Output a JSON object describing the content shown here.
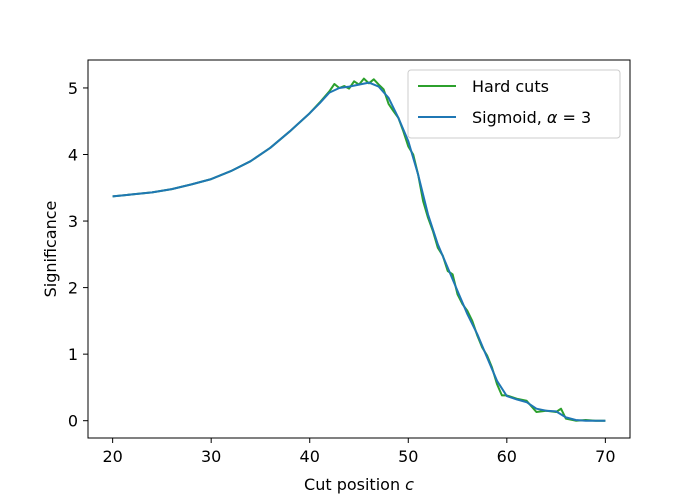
{
  "chart_data": {
    "type": "line",
    "xlabel_text": "Cut position",
    "xlabel_var": "c",
    "ylabel": "Significance",
    "xlim": [
      17.5,
      72.5
    ],
    "ylim": [
      -0.26,
      5.42
    ],
    "x_ticks": [
      20,
      30,
      40,
      50,
      60,
      70
    ],
    "y_ticks": [
      0,
      1,
      2,
      3,
      4,
      5
    ],
    "grid": false,
    "legend_position": "top-right",
    "series": [
      {
        "name": "Hard cuts",
        "color": "#2ca02c",
        "x": [
          20,
          22,
          24,
          26,
          28,
          30,
          32,
          34,
          36,
          38,
          40,
          41,
          42,
          42.5,
          43,
          43.5,
          44,
          44.5,
          45,
          45.5,
          46,
          46.5,
          47,
          47.5,
          48,
          48.5,
          49,
          49.5,
          50,
          50.5,
          51,
          51.5,
          52,
          52.5,
          53,
          53.5,
          54,
          54.5,
          55,
          55.5,
          56,
          56.5,
          57,
          57.5,
          58,
          58.5,
          59,
          59.5,
          60,
          61,
          62,
          63,
          64,
          65,
          65.5,
          66,
          67,
          68,
          69,
          70
        ],
        "y": [
          3.37,
          3.4,
          3.43,
          3.48,
          3.55,
          3.63,
          3.75,
          3.9,
          4.1,
          4.35,
          4.62,
          4.78,
          4.95,
          5.06,
          5.0,
          5.03,
          4.99,
          5.1,
          5.05,
          5.14,
          5.07,
          5.13,
          5.05,
          4.98,
          4.76,
          4.65,
          4.55,
          4.35,
          4.12,
          4.0,
          3.7,
          3.3,
          3.05,
          2.85,
          2.6,
          2.48,
          2.25,
          2.2,
          1.9,
          1.75,
          1.65,
          1.5,
          1.28,
          1.1,
          0.98,
          0.8,
          0.55,
          0.38,
          0.38,
          0.33,
          0.3,
          0.13,
          0.15,
          0.13,
          0.18,
          0.03,
          0.0,
          0.01,
          0.0,
          0.0
        ]
      },
      {
        "name": "Sigmoid, α = 3",
        "name_prefix": "Sigmoid, ",
        "name_var": "α",
        "name_suffix": " = 3",
        "color": "#1f77b4",
        "x": [
          20,
          22,
          24,
          26,
          28,
          30,
          32,
          34,
          36,
          38,
          40,
          41,
          42,
          43,
          44,
          45,
          46,
          47,
          48,
          49,
          50,
          51,
          52,
          53,
          54,
          55,
          56,
          57,
          58,
          59,
          60,
          61,
          62,
          63,
          64,
          65,
          66,
          67,
          68,
          70
        ],
        "y": [
          3.37,
          3.4,
          3.43,
          3.48,
          3.55,
          3.63,
          3.75,
          3.9,
          4.1,
          4.35,
          4.62,
          4.77,
          4.93,
          5.0,
          5.02,
          5.05,
          5.08,
          5.02,
          4.85,
          4.55,
          4.2,
          3.7,
          3.1,
          2.65,
          2.3,
          1.95,
          1.6,
          1.3,
          0.95,
          0.6,
          0.37,
          0.32,
          0.28,
          0.18,
          0.15,
          0.14,
          0.05,
          0.01,
          0.0,
          0.0
        ]
      }
    ]
  }
}
